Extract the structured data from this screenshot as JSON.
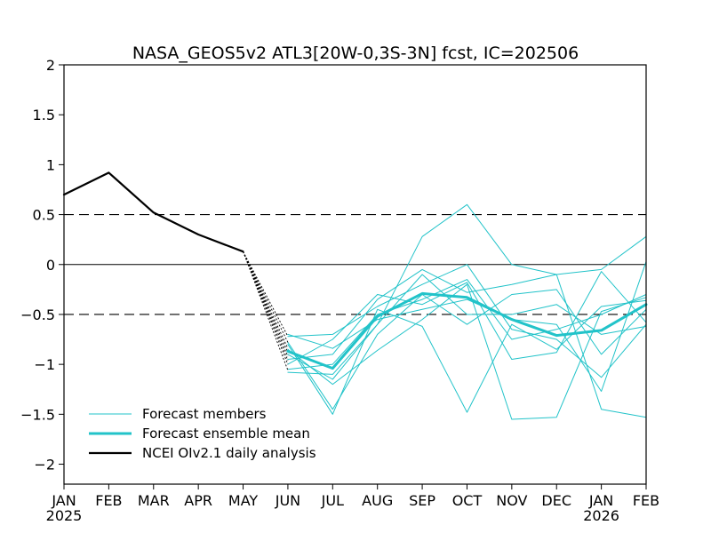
{
  "chart_data": {
    "type": "line",
    "title": "NASA_GEOS5v2 ATL3[20W-0,3S-3N] fcst, IC=202506",
    "xlabel": "",
    "ylabel": "",
    "ylim": [
      -2.2,
      2
    ],
    "yticks": [
      "2",
      "1.5",
      "1",
      "0.5",
      "0",
      "−0.5",
      "−1",
      "−1.5",
      "−2"
    ],
    "ytick_values": [
      2,
      1.5,
      1,
      0.5,
      0,
      -0.5,
      -1,
      -1.5,
      -2
    ],
    "categories": [
      "JAN",
      "FEB",
      "MAR",
      "APR",
      "MAY",
      "JUN",
      "JUL",
      "AUG",
      "SEP",
      "OCT",
      "NOV",
      "DEC",
      "JAN",
      "FEB"
    ],
    "year_labels": [
      {
        "index": 0,
        "label": "2025"
      },
      {
        "index": 12,
        "label": "2026"
      }
    ],
    "reference_lines": {
      "dashed": [
        0.5,
        -0.5
      ],
      "solid": [
        0
      ]
    },
    "grid": false,
    "legend_placement": "bottom-left",
    "legend": [
      {
        "label": "Forecast members",
        "color": "#22c3c9",
        "style": "thin"
      },
      {
        "label": "Forecast ensemble mean",
        "color": "#22c3c9",
        "style": "thick"
      },
      {
        "label": "NCEI OIv2.1 daily analysis",
        "color": "#000000",
        "style": "thick"
      }
    ],
    "analysis": {
      "x": [
        0,
        1,
        2,
        3,
        4
      ],
      "values": [
        0.7,
        0.92,
        0.52,
        0.3,
        0.13
      ]
    },
    "daily_spread": {
      "x_start": 4,
      "value_start": 0.13,
      "x_end": 5,
      "values_end": [
        -0.72,
        -0.78,
        -0.84,
        -0.88,
        -0.92,
        -0.96,
        -1.0,
        -1.06
      ]
    },
    "ensemble_mean": {
      "x": [
        5,
        6,
        7,
        8,
        9,
        10,
        11,
        12,
        13
      ],
      "values": [
        -0.87,
        -1.04,
        -0.52,
        -0.29,
        -0.33,
        -0.55,
        -0.71,
        -0.66,
        -0.4
      ]
    },
    "members": [
      {
        "x": [
          5,
          6,
          7,
          8,
          9,
          10,
          11,
          12,
          13
        ],
        "values": [
          -1.08,
          -1.1,
          -0.6,
          0.28,
          0.6,
          0.0,
          -0.1,
          -0.05,
          0.28
        ]
      },
      {
        "x": [
          5,
          6,
          7,
          8,
          9,
          10,
          11,
          12,
          13
        ],
        "values": [
          -0.72,
          -0.7,
          -0.42,
          -0.2,
          0.0,
          -0.65,
          -0.75,
          -1.13,
          -0.6
        ]
      },
      {
        "x": [
          5,
          6,
          7,
          8,
          9,
          10,
          11,
          12,
          13
        ],
        "values": [
          -0.8,
          -1.5,
          -0.45,
          -0.62,
          -1.48,
          -0.6,
          -0.85,
          -0.42,
          -0.36
        ]
      },
      {
        "x": [
          5,
          6,
          7,
          8,
          9,
          10,
          11,
          12,
          13
        ],
        "values": [
          -0.85,
          -1.2,
          -0.86,
          -0.55,
          -0.2,
          -1.55,
          -1.53,
          -0.47,
          -0.33
        ]
      },
      {
        "x": [
          5,
          6,
          7,
          8,
          9,
          10,
          11,
          12,
          13
        ],
        "values": [
          -0.95,
          -0.9,
          -0.35,
          -0.05,
          -0.28,
          -0.2,
          -0.1,
          -1.45,
          -1.53
        ]
      },
      {
        "x": [
          5,
          6,
          7,
          8,
          9,
          10,
          11,
          12,
          13
        ],
        "values": [
          -1.0,
          -0.75,
          -0.3,
          -0.4,
          -0.18,
          -0.95,
          -0.88,
          -0.07,
          -0.58
        ]
      },
      {
        "x": [
          5,
          6,
          7,
          8,
          9,
          10,
          11,
          12,
          13
        ],
        "values": [
          -0.7,
          -0.84,
          -0.55,
          -0.45,
          -0.35,
          -0.55,
          -0.6,
          -1.27,
          0.03
        ]
      },
      {
        "x": [
          5,
          6,
          7,
          8,
          9,
          10,
          11,
          12,
          13
        ],
        "values": [
          -0.9,
          -1.15,
          -0.6,
          -0.1,
          -0.5,
          -0.5,
          -0.4,
          -0.7,
          -0.62
        ]
      },
      {
        "x": [
          5,
          6,
          7,
          8,
          9,
          10,
          11,
          12,
          13
        ],
        "values": [
          -0.78,
          -1.45,
          -0.7,
          -0.3,
          -0.6,
          -0.3,
          -0.25,
          -0.9,
          -0.45
        ]
      },
      {
        "x": [
          5,
          6,
          7,
          8,
          9,
          10,
          11,
          12,
          13
        ],
        "values": [
          -1.05,
          -1.0,
          -0.5,
          -0.35,
          -0.15,
          -0.75,
          -0.65,
          -0.5,
          -0.3
        ]
      }
    ],
    "colors": {
      "member": "#22c3c9",
      "mean": "#22c3c9",
      "analysis": "#000000",
      "frame": "#000000"
    }
  }
}
